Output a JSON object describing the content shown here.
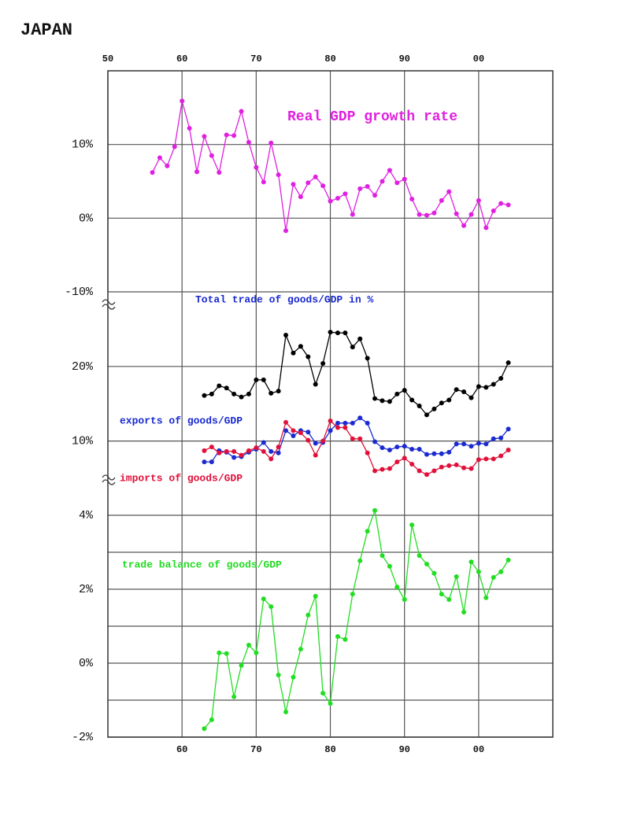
{
  "title": "JAPAN",
  "chart_data": [
    {
      "type": "line",
      "xlim": [
        1950,
        2010
      ],
      "ylim": [
        -10,
        20
      ],
      "xticks": [
        {
          "value": 1950,
          "label": "50"
        },
        {
          "value": 1960,
          "label": "60"
        },
        {
          "value": 1970,
          "label": "70"
        },
        {
          "value": 1980,
          "label": "80"
        },
        {
          "value": 1990,
          "label": "90"
        },
        {
          "value": 2000,
          "label": "00"
        }
      ],
      "yticks": [
        {
          "value": -10,
          "label": "-10%"
        },
        {
          "value": 0,
          "label": "0%"
        },
        {
          "value": 10,
          "label": "10%"
        }
      ],
      "x": [
        1956,
        1957,
        1958,
        1959,
        1960,
        1961,
        1962,
        1963,
        1964,
        1965,
        1966,
        1967,
        1968,
        1969,
        1970,
        1971,
        1972,
        1973,
        1974,
        1975,
        1976,
        1977,
        1978,
        1979,
        1980,
        1981,
        1982,
        1983,
        1984,
        1985,
        1986,
        1987,
        1988,
        1989,
        1990,
        1991,
        1992,
        1993,
        1994,
        1995,
        1996,
        1997,
        1998,
        1999,
        2000,
        2001,
        2002,
        2003,
        2004
      ],
      "series": [
        {
          "name": "Real GDP growth rate",
          "color": "#e020e0",
          "values": [
            6.2,
            8.2,
            7.1,
            9.7,
            15.9,
            12.2,
            6.3,
            11.1,
            8.5,
            6.2,
            11.3,
            11.2,
            14.5,
            10.3,
            6.9,
            4.9,
            10.2,
            5.9,
            -1.7,
            4.6,
            2.9,
            4.8,
            5.6,
            4.4,
            2.3,
            2.7,
            3.3,
            0.5,
            4.0,
            4.3,
            3.1,
            5.0,
            6.5,
            4.8,
            5.3,
            2.6,
            0.5,
            0.4,
            0.7,
            2.4,
            3.6,
            0.6,
            -1.0,
            0.5,
            2.4,
            -1.3,
            1.0,
            2.0,
            1.8
          ]
        }
      ]
    },
    {
      "type": "line",
      "xlim": [
        1950,
        2010
      ],
      "ylim": [
        5,
        30
      ],
      "xticks": [
        1960,
        1970,
        1980,
        1990,
        2000
      ],
      "yticks": [
        {
          "value": 10,
          "label": "10%"
        },
        {
          "value": 20,
          "label": "20%"
        }
      ],
      "x": [
        1963,
        1964,
        1965,
        1966,
        1967,
        1968,
        1969,
        1970,
        1971,
        1972,
        1973,
        1974,
        1975,
        1976,
        1977,
        1978,
        1979,
        1980,
        1981,
        1982,
        1983,
        1984,
        1985,
        1986,
        1987,
        1988,
        1989,
        1990,
        1991,
        1992,
        1993,
        1994,
        1995,
        1996,
        1997,
        1998,
        1999,
        2000,
        2001,
        2002,
        2003,
        2004
      ],
      "series": [
        {
          "name": "Total trade of goods/GDP in %",
          "color": "#000000",
          "label_color": "#1a2ad0",
          "values": [
            16.1,
            16.3,
            17.4,
            17.1,
            16.3,
            15.9,
            16.3,
            18.2,
            18.2,
            16.4,
            16.7,
            24.2,
            21.8,
            22.7,
            21.3,
            17.6,
            20.4,
            24.6,
            24.5,
            24.5,
            22.6,
            23.7,
            21.1,
            15.7,
            15.4,
            15.3,
            16.3,
            16.8,
            15.5,
            14.7,
            13.5,
            14.3,
            15.1,
            15.5,
            16.9,
            16.6,
            15.8,
            17.3,
            17.2,
            17.6,
            18.4,
            20.5
          ]
        },
        {
          "name": "exports of goods/GDP",
          "color": "#1a2ad0",
          "values": [
            7.2,
            7.2,
            8.7,
            8.5,
            7.8,
            7.9,
            8.5,
            8.9,
            9.8,
            8.6,
            8.4,
            11.4,
            10.7,
            11.4,
            11.2,
            9.7,
            9.8,
            11.4,
            12.4,
            12.4,
            12.4,
            13.1,
            12.4,
            9.9,
            9.1,
            8.8,
            9.2,
            9.3,
            8.9,
            8.9,
            8.2,
            8.3,
            8.3,
            8.5,
            9.6,
            9.6,
            9.3,
            9.7,
            9.6,
            10.3,
            10.4,
            11.6
          ]
        },
        {
          "name": "imports of goods/GDP",
          "color": "#e0103a",
          "values": [
            8.7,
            9.2,
            8.4,
            8.6,
            8.6,
            8.1,
            8.7,
            9.1,
            8.6,
            7.6,
            9.2,
            12.5,
            11.4,
            11.1,
            10.1,
            8.1,
            10.0,
            12.7,
            11.8,
            11.8,
            10.3,
            10.3,
            8.4,
            6.0,
            6.2,
            6.3,
            7.2,
            7.7,
            6.9,
            6.0,
            5.5,
            6.0,
            6.5,
            6.7,
            6.8,
            6.4,
            6.3,
            7.5,
            7.6,
            7.6,
            8.0,
            8.8
          ]
        }
      ]
    },
    {
      "type": "line",
      "xlim": [
        1950,
        2010
      ],
      "ylim": [
        -2,
        5
      ],
      "xticks": [
        {
          "value": 1960,
          "label": "60"
        },
        {
          "value": 1970,
          "label": "70"
        },
        {
          "value": 1980,
          "label": "80"
        },
        {
          "value": 1990,
          "label": "90"
        },
        {
          "value": 2000,
          "label": "00"
        }
      ],
      "yticks": [
        {
          "value": -2,
          "label": "-2%"
        },
        {
          "value": 0,
          "label": "0%"
        },
        {
          "value": 2,
          "label": "2%"
        },
        {
          "value": 4,
          "label": "4%"
        }
      ],
      "minor_yticks": [
        -1,
        1,
        3
      ],
      "x": [
        1963,
        1964,
        1965,
        1966,
        1967,
        1968,
        1969,
        1970,
        1971,
        1972,
        1973,
        1974,
        1975,
        1976,
        1977,
        1978,
        1979,
        1980,
        1981,
        1982,
        1983,
        1984,
        1985,
        1986,
        1987,
        1988,
        1989,
        1990,
        1991,
        1992,
        1993,
        1994,
        1995,
        1996,
        1997,
        1998,
        1999,
        2000,
        2001,
        2002,
        2003,
        2004
      ],
      "series": [
        {
          "name": "trade balance of goods/GDP",
          "color": "#22dd22",
          "values": [
            -1.77,
            -1.53,
            0.28,
            0.26,
            -0.91,
            -0.06,
            0.49,
            0.28,
            1.74,
            1.53,
            -0.32,
            -1.32,
            -0.38,
            0.38,
            1.3,
            1.81,
            -0.81,
            -1.09,
            0.72,
            0.64,
            1.87,
            2.77,
            3.57,
            4.13,
            2.91,
            2.62,
            2.06,
            1.72,
            3.74,
            2.91,
            2.68,
            2.43,
            1.87,
            1.72,
            2.34,
            1.38,
            2.74,
            2.47,
            1.77,
            2.32,
            2.47,
            2.79
          ]
        }
      ]
    }
  ]
}
